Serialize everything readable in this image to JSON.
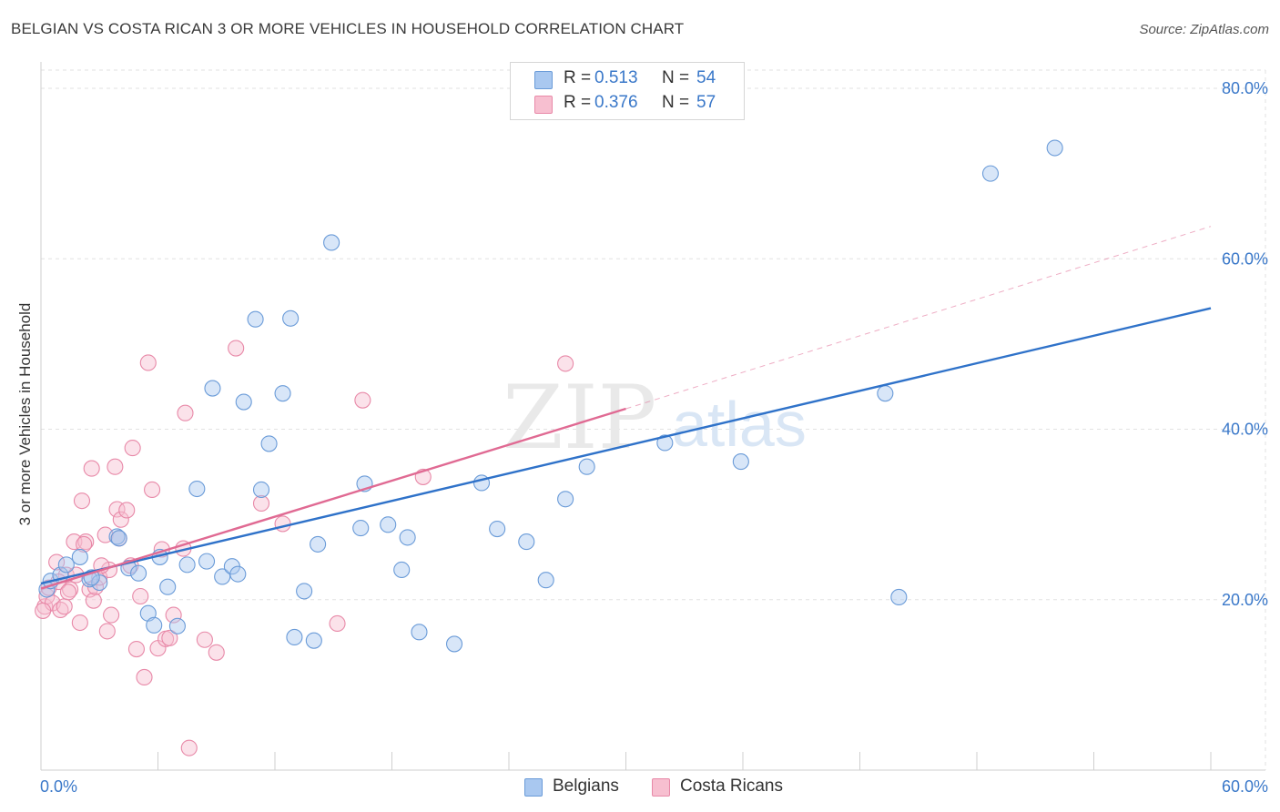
{
  "header": {
    "title": "BELGIAN VS COSTA RICAN 3 OR MORE VEHICLES IN HOUSEHOLD CORRELATION CHART",
    "source": "Source: ZipAtlas.com"
  },
  "watermark": {
    "part1": "ZIP",
    "part2": "atlas"
  },
  "legend": {
    "rows": [
      {
        "r_label": "R =",
        "r_value": "0.513",
        "n_label": "N =",
        "n_value": "54",
        "color": "#a9c8f0",
        "border": "#6a9bd8"
      },
      {
        "r_label": "R =",
        "r_value": "0.376",
        "n_label": "N =",
        "n_value": "57",
        "color": "#f7bfd0",
        "border": "#e889a8"
      }
    ],
    "bottom": [
      {
        "label": "Belgians",
        "color": "#a9c8f0",
        "border": "#6a9bd8"
      },
      {
        "label": "Costa Ricans",
        "color": "#f7bfd0",
        "border": "#e889a8"
      }
    ]
  },
  "colors": {
    "blue": "#2f72c9",
    "pink": "#e06a93",
    "axis_text": "#3a78c9",
    "grid": "#e2e2e2"
  },
  "chart_data": {
    "type": "scatter",
    "title": "BELGIAN VS COSTA RICAN 3 OR MORE VEHICLES IN HOUSEHOLD CORRELATION CHART",
    "xlabel": "",
    "ylabel": "3 or more Vehicles in Household",
    "xlim": [
      0,
      60
    ],
    "ylim": [
      0,
      80
    ],
    "x_ticks_labels": [
      "0.0%",
      "60.0%"
    ],
    "y_ticks": [
      20,
      40,
      60,
      80
    ],
    "y_ticks_labels": [
      "20.0%",
      "40.0%",
      "60.0%",
      "80.0%"
    ],
    "grid": true,
    "legend_position": "top-center",
    "series": [
      {
        "name": "Belgians",
        "color": "#a9c8f0",
        "edge": "#6a9bd8",
        "trend": {
          "x": [
            0,
            60
          ],
          "y": [
            21.9,
            54.2
          ],
          "style": "solid",
          "color": "#2f72c9"
        },
        "points": [
          [
            0.3,
            21.2
          ],
          [
            0.5,
            22.2
          ],
          [
            1.0,
            22.9
          ],
          [
            1.3,
            24.1
          ],
          [
            2.0,
            25.0
          ],
          [
            2.5,
            22.4
          ],
          [
            3.0,
            22.0
          ],
          [
            3.9,
            27.4
          ],
          [
            4.0,
            27.2
          ],
          [
            4.5,
            23.7
          ],
          [
            5.0,
            23.1
          ],
          [
            5.5,
            18.4
          ],
          [
            5.8,
            17.0
          ],
          [
            6.1,
            25.0
          ],
          [
            6.5,
            21.5
          ],
          [
            7.0,
            16.9
          ],
          [
            7.5,
            24.1
          ],
          [
            8.0,
            33.0
          ],
          [
            8.5,
            24.5
          ],
          [
            8.8,
            44.8
          ],
          [
            9.3,
            22.7
          ],
          [
            9.8,
            23.9
          ],
          [
            10.1,
            23.0
          ],
          [
            10.4,
            43.2
          ],
          [
            11.0,
            52.9
          ],
          [
            11.3,
            32.9
          ],
          [
            11.7,
            38.3
          ],
          [
            12.4,
            44.2
          ],
          [
            12.8,
            53.0
          ],
          [
            13.0,
            15.6
          ],
          [
            13.5,
            21.0
          ],
          [
            14.0,
            15.2
          ],
          [
            14.2,
            26.5
          ],
          [
            14.9,
            61.9
          ],
          [
            16.4,
            28.4
          ],
          [
            16.6,
            33.6
          ],
          [
            17.8,
            28.8
          ],
          [
            18.5,
            23.5
          ],
          [
            18.8,
            27.3
          ],
          [
            19.4,
            16.2
          ],
          [
            21.2,
            14.8
          ],
          [
            22.6,
            33.7
          ],
          [
            23.4,
            28.3
          ],
          [
            24.9,
            26.8
          ],
          [
            25.9,
            22.3
          ],
          [
            26.9,
            31.8
          ],
          [
            28.0,
            35.6
          ],
          [
            32.0,
            38.4
          ],
          [
            35.9,
            36.2
          ],
          [
            43.3,
            44.2
          ],
          [
            44.0,
            20.3
          ],
          [
            48.7,
            70.0
          ],
          [
            52.0,
            73.0
          ],
          [
            2.6,
            22.6
          ]
        ]
      },
      {
        "name": "Costa Ricans",
        "color": "#f7bfd0",
        "edge": "#e889a8",
        "trend": {
          "x": [
            0,
            30
          ],
          "y": [
            21.3,
            42.4
          ],
          "style": "solid",
          "color": "#e06a93"
        },
        "trend_extension": {
          "x": [
            30,
            60
          ],
          "y": [
            42.4,
            63.8
          ],
          "style": "dashed",
          "color": "#e06a93"
        },
        "points": [
          [
            0.2,
            19.2
          ],
          [
            0.3,
            20.4
          ],
          [
            0.4,
            21.4
          ],
          [
            0.6,
            19.6
          ],
          [
            0.8,
            24.4
          ],
          [
            1.0,
            18.8
          ],
          [
            1.2,
            19.2
          ],
          [
            1.3,
            22.9
          ],
          [
            1.5,
            21.2
          ],
          [
            1.7,
            26.8
          ],
          [
            1.8,
            22.9
          ],
          [
            2.0,
            17.3
          ],
          [
            2.1,
            31.6
          ],
          [
            2.3,
            26.8
          ],
          [
            2.5,
            21.2
          ],
          [
            2.6,
            35.4
          ],
          [
            2.7,
            19.9
          ],
          [
            2.8,
            21.5
          ],
          [
            3.0,
            22.6
          ],
          [
            3.3,
            27.6
          ],
          [
            3.4,
            16.3
          ],
          [
            3.5,
            23.5
          ],
          [
            3.6,
            18.2
          ],
          [
            3.8,
            35.6
          ],
          [
            3.9,
            30.6
          ],
          [
            4.0,
            27.2
          ],
          [
            4.1,
            29.4
          ],
          [
            4.4,
            30.5
          ],
          [
            4.6,
            24.0
          ],
          [
            4.7,
            37.8
          ],
          [
            4.9,
            14.2
          ],
          [
            5.1,
            20.4
          ],
          [
            5.3,
            10.9
          ],
          [
            5.5,
            47.8
          ],
          [
            5.7,
            32.9
          ],
          [
            6.0,
            14.3
          ],
          [
            6.2,
            25.9
          ],
          [
            6.4,
            15.4
          ],
          [
            6.6,
            15.5
          ],
          [
            6.8,
            18.2
          ],
          [
            7.3,
            26.0
          ],
          [
            7.4,
            41.9
          ],
          [
            7.6,
            2.6
          ],
          [
            8.4,
            15.3
          ],
          [
            9.0,
            13.8
          ],
          [
            10.0,
            49.5
          ],
          [
            11.3,
            31.3
          ],
          [
            12.4,
            28.9
          ],
          [
            15.2,
            17.2
          ],
          [
            16.5,
            43.4
          ],
          [
            19.6,
            34.4
          ],
          [
            26.9,
            47.7
          ],
          [
            0.1,
            18.7
          ],
          [
            0.9,
            22.1
          ],
          [
            1.4,
            20.9
          ],
          [
            2.2,
            26.5
          ],
          [
            3.1,
            24.0
          ]
        ]
      }
    ]
  }
}
